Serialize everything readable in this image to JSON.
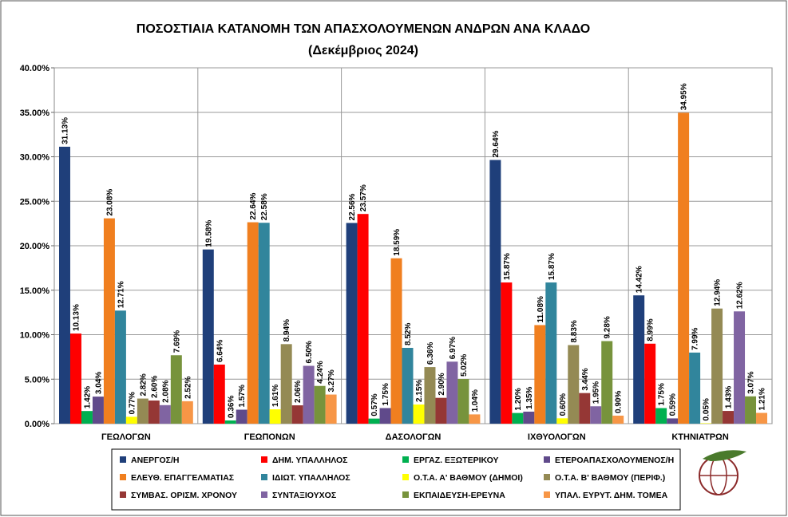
{
  "chart_data": {
    "type": "bar",
    "title": "ΠΟΣΟΣΤΙΑΙΑ ΚΑΤΑΝΟΜΗ ΤΩΝ ΑΠΑΣΧΟΛΟΥΜΕΝΩΝ ΑΝΔΡΩΝ ΑΝΑ ΚΛΑΔΟ",
    "subtitle": "(Δεκέμβριος 2024)",
    "categories": [
      "ΓΕΩΛΟΓΩΝ",
      "ΓΕΩΠΟΝΩΝ",
      "ΔΑΣΟΛΟΓΩΝ",
      "ΙΧΘΥΟΛΟΓΩΝ",
      "ΚΤΗΝΙΑΤΡΩΝ"
    ],
    "ylim": [
      0,
      40
    ],
    "yticks": [
      {
        "value": 0,
        "label": "0.00%"
      },
      {
        "value": 5,
        "label": "5.00%"
      },
      {
        "value": 10,
        "label": "10.00%"
      },
      {
        "value": 15,
        "label": "15.00%"
      },
      {
        "value": 20,
        "label": "20.00%"
      },
      {
        "value": 25,
        "label": "25.00%"
      },
      {
        "value": 30,
        "label": "30.00%"
      },
      {
        "value": 35,
        "label": "35.00%"
      },
      {
        "value": 40,
        "label": "40.00%"
      }
    ],
    "grid": true,
    "legend": "bottom",
    "series": [
      {
        "name": "ΑΝΕΡΓΟΣ/Η",
        "color": "#1f3f7a",
        "values": [
          31.13,
          19.58,
          22.56,
          29.64,
          14.42
        ],
        "value_labels": [
          "31.13%",
          "19.58%",
          "22.56%",
          "29.64%",
          "14.42%"
        ]
      },
      {
        "name": "ΔΗΜ. ΥΠΑΛΛΗΛΟΣ",
        "color": "#ff0000",
        "values": [
          10.13,
          6.64,
          23.57,
          15.87,
          8.99
        ],
        "value_labels": [
          "10.13%",
          "6.64%",
          "23.57%",
          "15.87%",
          "8.99%"
        ]
      },
      {
        "name": "ΕΡΓΑΖ. ΕΞΩΤΕΡΙΚΟΥ",
        "color": "#00b050",
        "values": [
          1.42,
          0.36,
          0.57,
          1.2,
          1.75
        ],
        "value_labels": [
          "1.42%",
          "0.36%",
          "0.57%",
          "1.20%",
          "1.75%"
        ]
      },
      {
        "name": "ΕΤΕΡΟΑΠΑΣΧΟΛΟΥΜΕΝΟΣ/Η",
        "color": "#604a8b",
        "values": [
          3.04,
          1.57,
          1.75,
          1.35,
          0.59
        ],
        "value_labels": [
          "3.04%",
          "1.57%",
          "1.75%",
          "1.35%",
          "0.59%"
        ]
      },
      {
        "name": "ΕΛΕΥΘ. ΕΠΑΓΓΕΛΜΑΤΙΑΣ",
        "color": "#f07f1f",
        "values": [
          23.08,
          22.64,
          18.59,
          11.08,
          34.95
        ],
        "value_labels": [
          "23.08%",
          "22.64%",
          "18.59%",
          "11.08%",
          "34.95%"
        ]
      },
      {
        "name": "ΙΔΙΩΤ. ΥΠΑΛΛΗΛΟΣ",
        "color": "#31859c",
        "values": [
          12.71,
          22.58,
          8.52,
          15.87,
          7.99
        ],
        "value_labels": [
          "12.71%",
          "22.58%",
          "8.52%",
          "15.87%",
          "7.99%"
        ]
      },
      {
        "name": "Ο.Τ.Α. Α' ΒΑΘΜΟΥ (ΔΗΜΟΙ)",
        "color": "#ffff00",
        "values": [
          0.77,
          1.61,
          2.15,
          0.6,
          0.05
        ],
        "value_labels": [
          "0.77%",
          "1.61%",
          "2.15%",
          "0.60%",
          "0.05%"
        ]
      },
      {
        "name": "Ο.Τ.Α. Β' ΒΑΘΜΟΥ (ΠΕΡΙΦ.)",
        "color": "#948a54",
        "values": [
          2.82,
          8.94,
          6.36,
          8.83,
          12.94
        ],
        "value_labels": [
          "2.82%",
          "8.94%",
          "6.36%",
          "8.83%",
          "12.94%"
        ]
      },
      {
        "name": "ΣΥΜΒΑΣ. ΟΡΙΣΜ. ΧΡΟΝΟΥ",
        "color": "#953735",
        "values": [
          2.6,
          2.06,
          2.9,
          3.44,
          1.43
        ],
        "value_labels": [
          "2.60%",
          "2.06%",
          "2.90%",
          "3.44%",
          "1.43%"
        ]
      },
      {
        "name": "ΣΥΝΤΑΞΙΟΥΧΟΣ",
        "color": "#8064a2",
        "values": [
          2.08,
          6.5,
          6.97,
          1.95,
          12.62
        ],
        "value_labels": [
          "2.08%",
          "6.50%",
          "6.97%",
          "1.95%",
          "12.62%"
        ]
      },
      {
        "name": "ΕΚΠΑΙΔΕΥΣΗ-ΕΡΕΥΝΑ",
        "color": "#77933c",
        "values": [
          7.69,
          4.24,
          5.02,
          9.28,
          3.07
        ],
        "value_labels": [
          "7.69%",
          "4.24%",
          "5.02%",
          "9.28%",
          "3.07%"
        ]
      },
      {
        "name": "ΥΠΑΛ. ΕΥΡΥΤ. ΔΗΜ. ΤΟΜΕΑ",
        "color": "#f79646",
        "values": [
          2.52,
          3.27,
          1.04,
          0.9,
          1.21
        ],
        "value_labels": [
          "2.52%",
          "3.27%",
          "1.04%",
          "0.90%",
          "1.21%"
        ]
      }
    ]
  }
}
